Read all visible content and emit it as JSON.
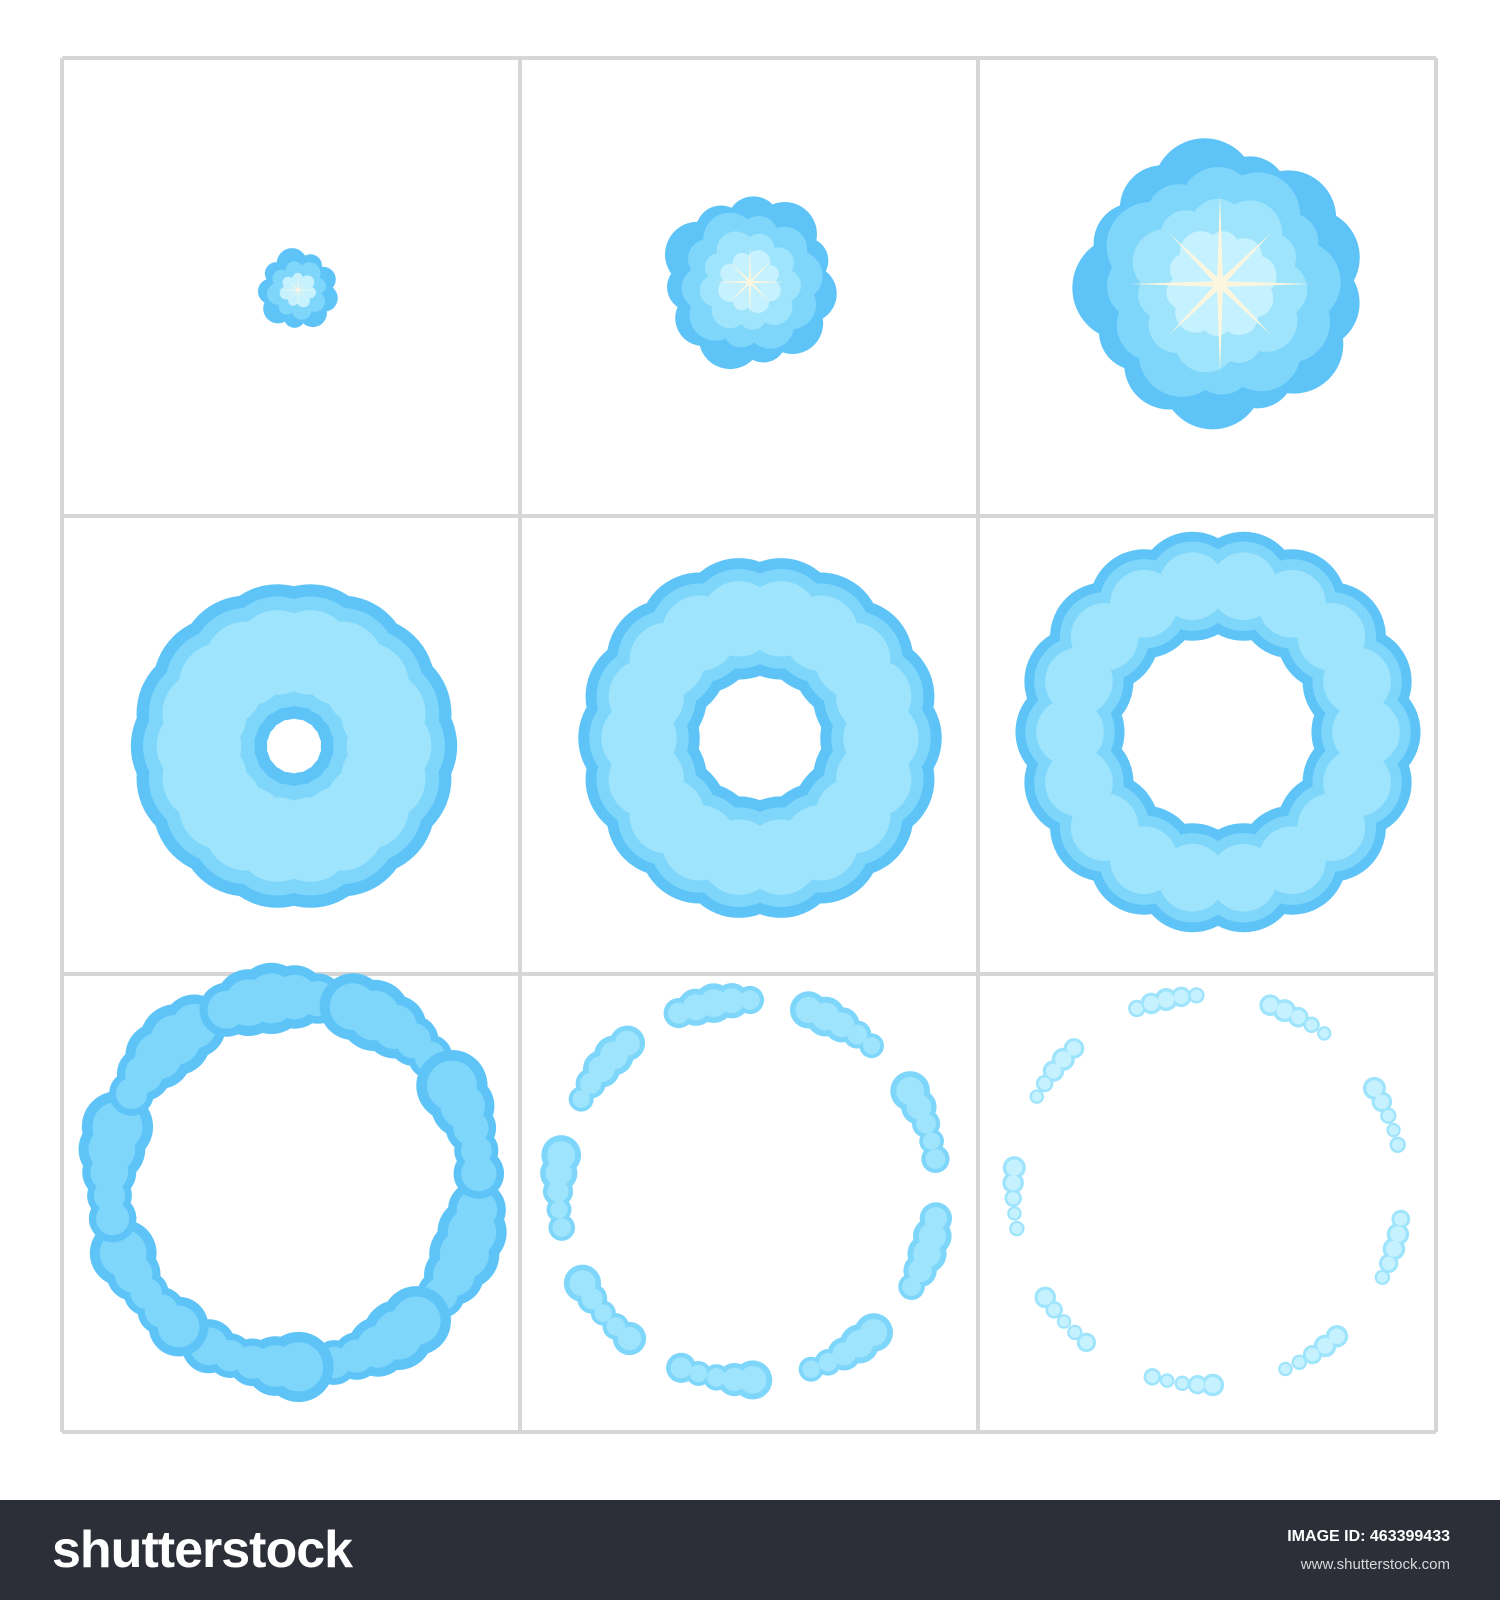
{
  "palette": {
    "outer": "#5ec4f8",
    "mid": "#7fd6fb",
    "inner": "#9ee4fc",
    "core": "#c6f1fe",
    "spark": "#fff6dd",
    "grid": "#d6d6d6",
    "footer_bg": "#2c2e38"
  },
  "sheet": {
    "rows": 3,
    "columns": 3,
    "frames": [
      {
        "frame": 1,
        "shape": "puff",
        "spark": true
      },
      {
        "frame": 2,
        "shape": "puff",
        "spark": true
      },
      {
        "frame": 3,
        "shape": "puff",
        "spark": true
      },
      {
        "frame": 4,
        "shape": "ring"
      },
      {
        "frame": 5,
        "shape": "ring"
      },
      {
        "frame": 6,
        "shape": "ring"
      },
      {
        "frame": 7,
        "shape": "broken-ring"
      },
      {
        "frame": 8,
        "shape": "broken-ring"
      },
      {
        "frame": 9,
        "shape": "broken-ring"
      }
    ]
  },
  "footer": {
    "brand": "shutterstock",
    "image_id_label": "IMAGE ID:",
    "image_id_value": "463399433",
    "site_url": "www.shutterstock.com"
  }
}
